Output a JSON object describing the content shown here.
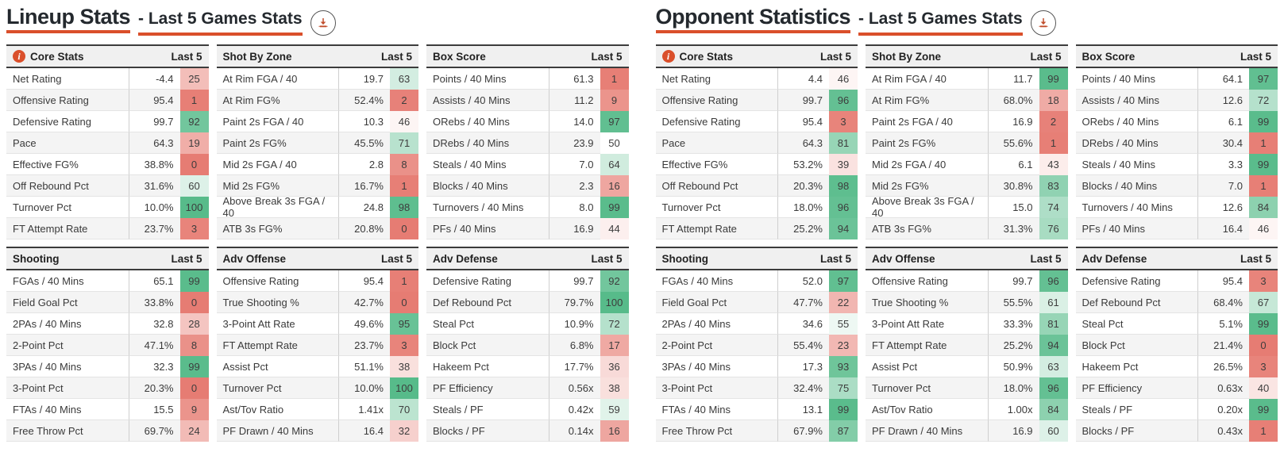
{
  "colors": {
    "accent": "#da4f2b",
    "rank_low": "#e67c73",
    "rank_mid": "#ffffff",
    "rank_high": "#57bb8a"
  },
  "icons": {
    "title_action": "download-icon",
    "core_stats_header": "info-icon"
  },
  "col_header": "Last 5",
  "sections": [
    {
      "title": "Lineup Stats",
      "subtitle": "- Last 5 Games Stats",
      "tables": [
        {
          "title": "Core Stats",
          "info_icon": true,
          "col_header": "Last 5",
          "rows": [
            {
              "label": "Net Rating",
              "value": "-4.4",
              "rank": 25
            },
            {
              "label": "Offensive Rating",
              "value": "95.4",
              "rank": 1
            },
            {
              "label": "Defensive Rating",
              "value": "99.7",
              "rank": 92
            },
            {
              "label": "Pace",
              "value": "64.3",
              "rank": 19
            },
            {
              "label": "Effective FG%",
              "value": "38.8%",
              "rank": 0
            },
            {
              "label": "Off Rebound Pct",
              "value": "31.6%",
              "rank": 60
            },
            {
              "label": "Turnover Pct",
              "value": "10.0%",
              "rank": 100
            },
            {
              "label": "FT Attempt Rate",
              "value": "23.7%",
              "rank": 3
            }
          ]
        },
        {
          "title": "Shot By Zone",
          "info_icon": false,
          "col_header": "Last 5",
          "rows": [
            {
              "label": "At Rim FGA / 40",
              "value": "19.7",
              "rank": 63
            },
            {
              "label": "At Rim FG%",
              "value": "52.4%",
              "rank": 2
            },
            {
              "label": "Paint 2s FGA / 40",
              "value": "10.3",
              "rank": 46
            },
            {
              "label": "Paint 2s FG%",
              "value": "45.5%",
              "rank": 71
            },
            {
              "label": "Mid 2s FGA / 40",
              "value": "2.8",
              "rank": 8
            },
            {
              "label": "Mid 2s FG%",
              "value": "16.7%",
              "rank": 1
            },
            {
              "label": "Above Break 3s FGA / 40",
              "value": "24.8",
              "rank": 98
            },
            {
              "label": "ATB 3s FG%",
              "value": "20.8%",
              "rank": 0
            }
          ]
        },
        {
          "title": "Box Score",
          "info_icon": false,
          "col_header": "Last 5",
          "rows": [
            {
              "label": "Points / 40 Mins",
              "value": "61.3",
              "rank": 1
            },
            {
              "label": "Assists / 40 Mins",
              "value": "11.2",
              "rank": 9
            },
            {
              "label": "ORebs / 40 Mins",
              "value": "14.0",
              "rank": 97
            },
            {
              "label": "DRebs / 40 Mins",
              "value": "23.9",
              "rank": 50
            },
            {
              "label": "Steals / 40 Mins",
              "value": "7.0",
              "rank": 64
            },
            {
              "label": "Blocks / 40 Mins",
              "value": "2.3",
              "rank": 16
            },
            {
              "label": "Turnovers / 40 Mins",
              "value": "8.0",
              "rank": 99
            },
            {
              "label": "PFs / 40 Mins",
              "value": "16.9",
              "rank": 44
            }
          ]
        },
        {
          "title": "Shooting",
          "info_icon": false,
          "col_header": "Last 5",
          "rows": [
            {
              "label": "FGAs / 40 Mins",
              "value": "65.1",
              "rank": 99
            },
            {
              "label": "Field Goal Pct",
              "value": "33.8%",
              "rank": 0
            },
            {
              "label": "2PAs / 40 Mins",
              "value": "32.8",
              "rank": 28
            },
            {
              "label": "2-Point Pct",
              "value": "47.1%",
              "rank": 8
            },
            {
              "label": "3PAs / 40 Mins",
              "value": "32.3",
              "rank": 99
            },
            {
              "label": "3-Point Pct",
              "value": "20.3%",
              "rank": 0
            },
            {
              "label": "FTAs / 40 Mins",
              "value": "15.5",
              "rank": 9
            },
            {
              "label": "Free Throw Pct",
              "value": "69.7%",
              "rank": 24
            }
          ]
        },
        {
          "title": "Adv Offense",
          "info_icon": false,
          "col_header": "Last 5",
          "rows": [
            {
              "label": "Offensive Rating",
              "value": "95.4",
              "rank": 1
            },
            {
              "label": "True Shooting %",
              "value": "42.7%",
              "rank": 0
            },
            {
              "label": "3-Point Att Rate",
              "value": "49.6%",
              "rank": 95
            },
            {
              "label": "FT Attempt Rate",
              "value": "23.7%",
              "rank": 3
            },
            {
              "label": "Assist Pct",
              "value": "51.1%",
              "rank": 38
            },
            {
              "label": "Turnover Pct",
              "value": "10.0%",
              "rank": 100
            },
            {
              "label": "Ast/Tov Ratio",
              "value": "1.41x",
              "rank": 70
            },
            {
              "label": "PF Drawn / 40 Mins",
              "value": "16.4",
              "rank": 32
            }
          ]
        },
        {
          "title": "Adv Defense",
          "info_icon": false,
          "col_header": "Last 5",
          "rows": [
            {
              "label": "Defensive Rating",
              "value": "99.7",
              "rank": 92
            },
            {
              "label": "Def Rebound Pct",
              "value": "79.7%",
              "rank": 100
            },
            {
              "label": "Steal Pct",
              "value": "10.9%",
              "rank": 72
            },
            {
              "label": "Block Pct",
              "value": "6.8%",
              "rank": 17
            },
            {
              "label": "Hakeem Pct",
              "value": "17.7%",
              "rank": 36
            },
            {
              "label": "PF Efficiency",
              "value": "0.56x",
              "rank": 38
            },
            {
              "label": "Steals / PF",
              "value": "0.42x",
              "rank": 59
            },
            {
              "label": "Blocks / PF",
              "value": "0.14x",
              "rank": 16
            }
          ]
        }
      ]
    },
    {
      "title": "Opponent Statistics",
      "subtitle": "- Last 5 Games Stats",
      "tables": [
        {
          "title": "Core Stats",
          "info_icon": true,
          "col_header": "Last 5",
          "rows": [
            {
              "label": "Net Rating",
              "value": "4.4",
              "rank": 46
            },
            {
              "label": "Offensive Rating",
              "value": "99.7",
              "rank": 96
            },
            {
              "label": "Defensive Rating",
              "value": "95.4",
              "rank": 3
            },
            {
              "label": "Pace",
              "value": "64.3",
              "rank": 81
            },
            {
              "label": "Effective FG%",
              "value": "53.2%",
              "rank": 39
            },
            {
              "label": "Off Rebound Pct",
              "value": "20.3%",
              "rank": 98
            },
            {
              "label": "Turnover Pct",
              "value": "18.0%",
              "rank": 96
            },
            {
              "label": "FT Attempt Rate",
              "value": "25.2%",
              "rank": 94
            }
          ]
        },
        {
          "title": "Shot By Zone",
          "info_icon": false,
          "col_header": "Last 5",
          "rows": [
            {
              "label": "At Rim FGA / 40",
              "value": "11.7",
              "rank": 99
            },
            {
              "label": "At Rim FG%",
              "value": "68.0%",
              "rank": 18
            },
            {
              "label": "Paint 2s FGA / 40",
              "value": "16.9",
              "rank": 2
            },
            {
              "label": "Paint 2s FG%",
              "value": "55.6%",
              "rank": 1
            },
            {
              "label": "Mid 2s FGA / 40",
              "value": "6.1",
              "rank": 43
            },
            {
              "label": "Mid 2s FG%",
              "value": "30.8%",
              "rank": 83
            },
            {
              "label": "Above Break 3s FGA / 40",
              "value": "15.0",
              "rank": 74
            },
            {
              "label": "ATB 3s FG%",
              "value": "31.3%",
              "rank": 76
            }
          ]
        },
        {
          "title": "Box Score",
          "info_icon": false,
          "col_header": "Last 5",
          "rows": [
            {
              "label": "Points / 40 Mins",
              "value": "64.1",
              "rank": 97
            },
            {
              "label": "Assists / 40 Mins",
              "value": "12.6",
              "rank": 72
            },
            {
              "label": "ORebs / 40 Mins",
              "value": "6.1",
              "rank": 99
            },
            {
              "label": "DRebs / 40 Mins",
              "value": "30.4",
              "rank": 1
            },
            {
              "label": "Steals / 40 Mins",
              "value": "3.3",
              "rank": 99
            },
            {
              "label": "Blocks / 40 Mins",
              "value": "7.0",
              "rank": 1
            },
            {
              "label": "Turnovers / 40 Mins",
              "value": "12.6",
              "rank": 84
            },
            {
              "label": "PFs / 40 Mins",
              "value": "16.4",
              "rank": 46
            }
          ]
        },
        {
          "title": "Shooting",
          "info_icon": false,
          "col_header": "Last 5",
          "rows": [
            {
              "label": "FGAs / 40 Mins",
              "value": "52.0",
              "rank": 97
            },
            {
              "label": "Field Goal Pct",
              "value": "47.7%",
              "rank": 22
            },
            {
              "label": "2PAs / 40 Mins",
              "value": "34.6",
              "rank": 55
            },
            {
              "label": "2-Point Pct",
              "value": "55.4%",
              "rank": 23
            },
            {
              "label": "3PAs / 40 Mins",
              "value": "17.3",
              "rank": 93
            },
            {
              "label": "3-Point Pct",
              "value": "32.4%",
              "rank": 75
            },
            {
              "label": "FTAs / 40 Mins",
              "value": "13.1",
              "rank": 99
            },
            {
              "label": "Free Throw Pct",
              "value": "67.9%",
              "rank": 87
            }
          ]
        },
        {
          "title": "Adv Offense",
          "info_icon": false,
          "col_header": "Last 5",
          "rows": [
            {
              "label": "Offensive Rating",
              "value": "99.7",
              "rank": 96
            },
            {
              "label": "True Shooting %",
              "value": "55.5%",
              "rank": 61
            },
            {
              "label": "3-Point Att Rate",
              "value": "33.3%",
              "rank": 81
            },
            {
              "label": "FT Attempt Rate",
              "value": "25.2%",
              "rank": 94
            },
            {
              "label": "Assist Pct",
              "value": "50.9%",
              "rank": 63
            },
            {
              "label": "Turnover Pct",
              "value": "18.0%",
              "rank": 96
            },
            {
              "label": "Ast/Tov Ratio",
              "value": "1.00x",
              "rank": 84
            },
            {
              "label": "PF Drawn / 40 Mins",
              "value": "16.9",
              "rank": 60
            }
          ]
        },
        {
          "title": "Adv Defense",
          "info_icon": false,
          "col_header": "Last 5",
          "rows": [
            {
              "label": "Defensive Rating",
              "value": "95.4",
              "rank": 3
            },
            {
              "label": "Def Rebound Pct",
              "value": "68.4%",
              "rank": 67
            },
            {
              "label": "Steal Pct",
              "value": "5.1%",
              "rank": 99
            },
            {
              "label": "Block Pct",
              "value": "21.4%",
              "rank": 0
            },
            {
              "label": "Hakeem Pct",
              "value": "26.5%",
              "rank": 3
            },
            {
              "label": "PF Efficiency",
              "value": "0.63x",
              "rank": 40
            },
            {
              "label": "Steals / PF",
              "value": "0.20x",
              "rank": 99
            },
            {
              "label": "Blocks / PF",
              "value": "0.43x",
              "rank": 1
            }
          ]
        }
      ]
    }
  ]
}
